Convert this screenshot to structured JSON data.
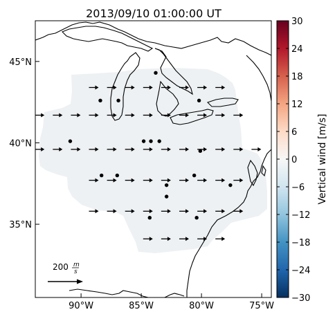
{
  "title": "2013/09/10 01:00:00 UT",
  "map": {
    "x_ticks": [
      {
        "value": -90,
        "label": "90°W"
      },
      {
        "value": -85,
        "label": "85°W"
      },
      {
        "value": -80,
        "label": "80°W"
      },
      {
        "value": -75,
        "label": "75°W"
      }
    ],
    "y_ticks": [
      {
        "value": 35,
        "label": "35°N"
      },
      {
        "value": 40,
        "label": "40°N"
      },
      {
        "value": 45,
        "label": "45°N"
      }
    ],
    "lon_range": [
      -93.8,
      -74.2
    ],
    "lat_range": [
      30.5,
      47.5
    ]
  },
  "colorbar": {
    "label": "Vertical wind [m/s]",
    "range": [
      -30,
      30
    ],
    "ticks": [
      "30",
      "24",
      "18",
      "12",
      "6",
      "0",
      "−6",
      "−12",
      "−18",
      "−24",
      "−30"
    ],
    "colors": [
      "#053061",
      "#2166ac",
      "#4393c3",
      "#92c5de",
      "#d1e5f0",
      "#f7f7f7",
      "#fddbc7",
      "#f4a582",
      "#d6604d",
      "#b2182b",
      "#67001f"
    ]
  },
  "scale_arrow": {
    "label_value": "200",
    "label_unit_num": "m",
    "label_unit_den": "s"
  },
  "chart_data": {
    "type": "vector-field-map",
    "field_fill_color": "#eef1f3",
    "wind_rows": [
      {
        "lat": 43.4,
        "lons": [
          -89.0,
          -87.5,
          -86.0,
          -84.5,
          -83.0,
          -81.5,
          -80.0,
          -78.5
        ]
      },
      {
        "lat": 41.7,
        "lons": [
          -93.5,
          -92.0,
          -90.5,
          -89.0,
          -87.5,
          -86.0,
          -84.5,
          -83.0,
          -81.5,
          -80.0,
          -78.5,
          -77.0
        ]
      },
      {
        "lat": 39.6,
        "lons": [
          -93.5,
          -92.0,
          -90.5,
          -89.0,
          -87.5,
          -86.0,
          -84.5,
          -83.0,
          -81.5,
          -80.0,
          -78.5,
          -77.0,
          -75.5
        ]
      },
      {
        "lat": 37.7,
        "lons": [
          -89.0,
          -87.5,
          -86.0,
          -84.5,
          -83.0,
          -81.5,
          -80.0,
          -78.5,
          -77.0
        ]
      },
      {
        "lat": 35.8,
        "lons": [
          -89.0,
          -87.5,
          -86.0,
          -84.5,
          -83.0,
          -81.5,
          -80.0,
          -78.5,
          -77.0
        ]
      },
      {
        "lat": 34.1,
        "lons": [
          -84.5,
          -83.0,
          -81.5,
          -80.0,
          -78.5
        ]
      }
    ],
    "stations": [
      [
        -83.8,
        44.3
      ],
      [
        -88.4,
        42.6
      ],
      [
        -86.9,
        42.6
      ],
      [
        -80.2,
        42.6
      ],
      [
        -90.9,
        40.1
      ],
      [
        -84.8,
        40.1
      ],
      [
        -84.2,
        40.1
      ],
      [
        -83.5,
        40.1
      ],
      [
        -80.1,
        39.5
      ],
      [
        -88.3,
        38.0
      ],
      [
        -87.0,
        38.0
      ],
      [
        -80.6,
        38.0
      ],
      [
        -82.9,
        37.4
      ],
      [
        -77.6,
        37.4
      ],
      [
        -82.9,
        36.7
      ],
      [
        -84.3,
        35.4
      ],
      [
        -80.4,
        35.4
      ]
    ]
  }
}
